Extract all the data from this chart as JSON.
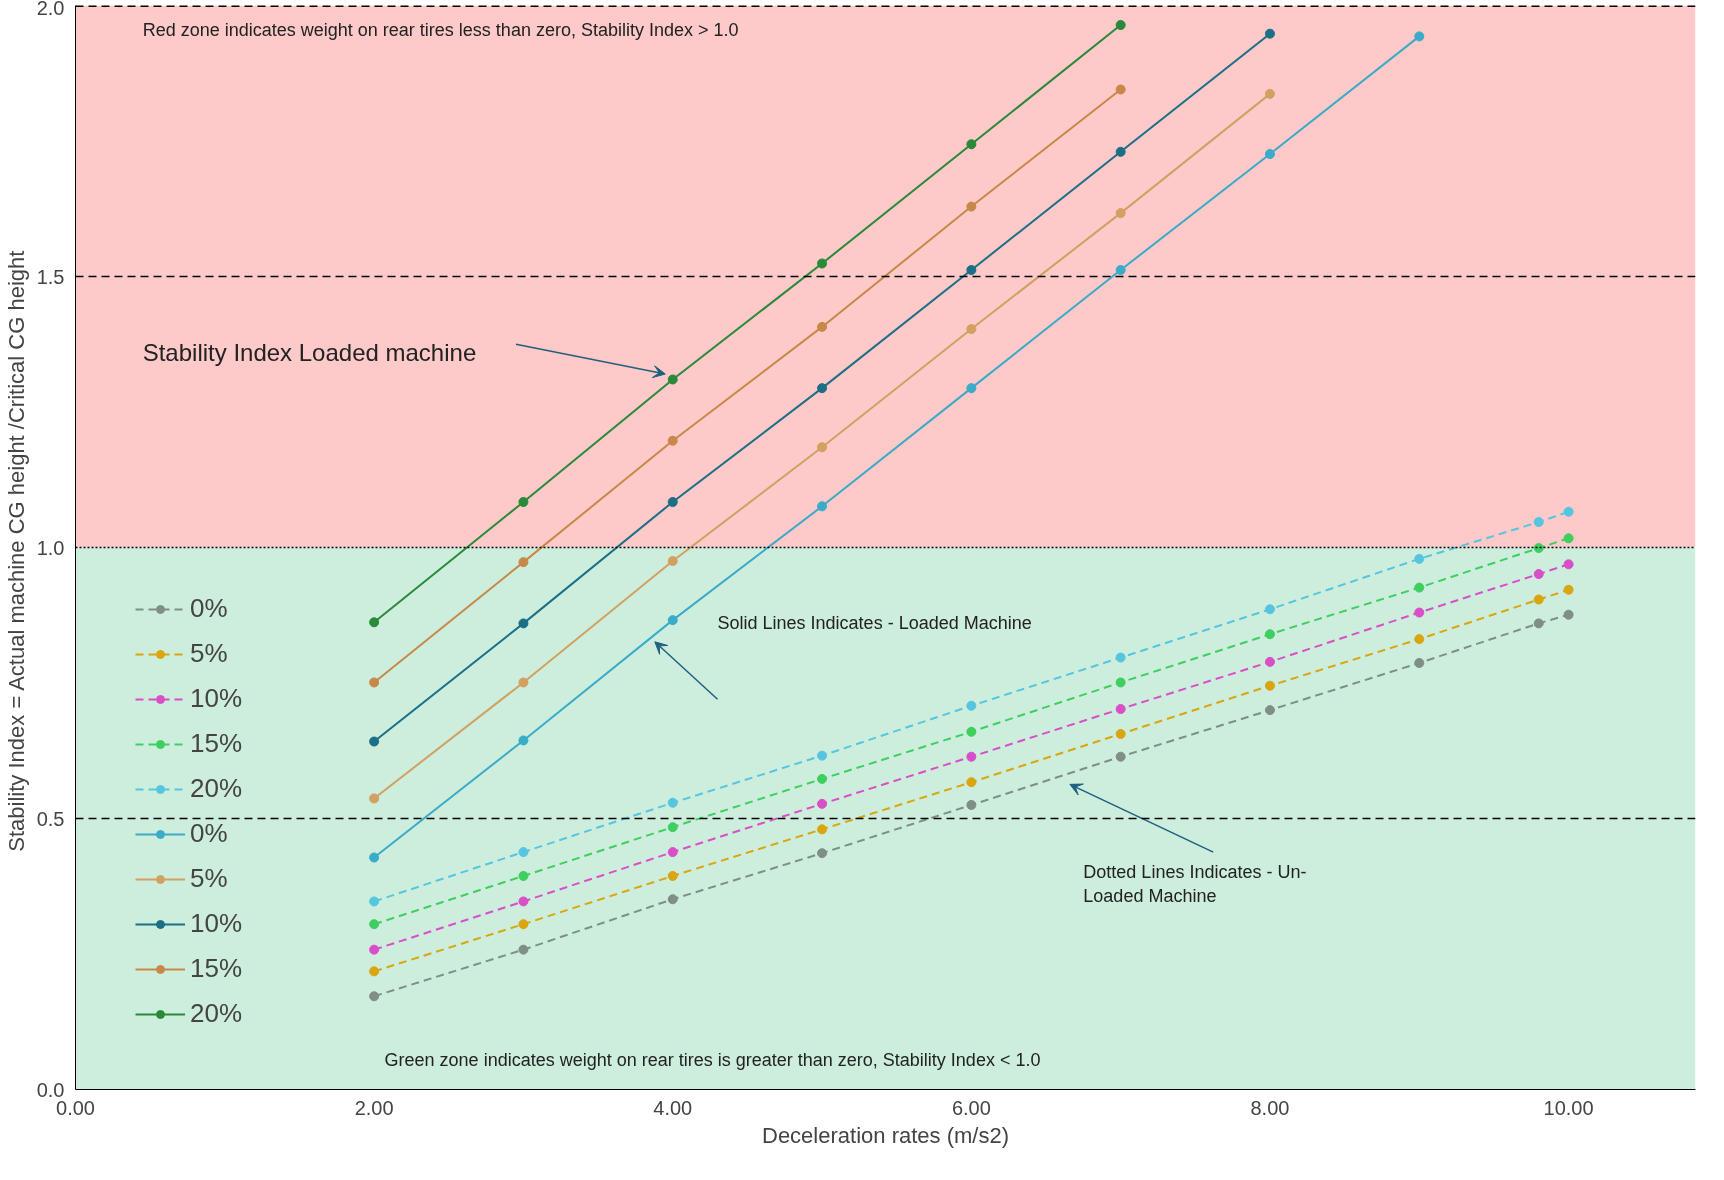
{
  "chart_data": {
    "type": "line",
    "xlabel": "Deceleration rates (m/s2)",
    "ylabel": "Stability Index = Actual machine  CG height /Critical CG height",
    "xlim": [
      0,
      10.85
    ],
    "ylim": [
      0,
      2
    ],
    "xticks": [
      {
        "value": 0,
        "label": "0.00"
      },
      {
        "value": 2,
        "label": "2.00"
      },
      {
        "value": 4,
        "label": "4.00"
      },
      {
        "value": 6,
        "label": "6.00"
      },
      {
        "value": 8,
        "label": "8.00"
      },
      {
        "value": 10,
        "label": "10.00"
      }
    ],
    "yticks": [
      {
        "value": 0,
        "label": "0.0"
      },
      {
        "value": 0.5,
        "label": "0.5"
      },
      {
        "value": 1,
        "label": "1.0"
      },
      {
        "value": 1.5,
        "label": "1.5"
      },
      {
        "value": 2,
        "label": "2.0"
      }
    ],
    "grid": "x",
    "legend": "bottom left",
    "marker": "circle",
    "series": [
      {
        "name": "0%",
        "color": "#7f8f85",
        "line_style": "dashed",
        "x": [
          2,
          3,
          4,
          5,
          6,
          7,
          8,
          9,
          9.8,
          10
        ],
        "values": [
          0.172,
          0.258,
          0.351,
          0.436,
          0.525,
          0.614,
          0.7,
          0.787,
          0.86,
          0.876
        ]
      },
      {
        "name": "5%",
        "color": "#d9a60f",
        "line_style": "dashed",
        "x": [
          2,
          3,
          4,
          5,
          6,
          7,
          8,
          9,
          9.8,
          10
        ],
        "values": [
          0.218,
          0.305,
          0.394,
          0.48,
          0.567,
          0.656,
          0.745,
          0.831,
          0.904,
          0.922
        ]
      },
      {
        "name": "10%",
        "color": "#d94fc8",
        "line_style": "dashed",
        "x": [
          2,
          3,
          4,
          5,
          6,
          7,
          8,
          9,
          9.8,
          10
        ],
        "values": [
          0.258,
          0.347,
          0.438,
          0.527,
          0.614,
          0.702,
          0.789,
          0.88,
          0.951,
          0.969
        ]
      },
      {
        "name": "15%",
        "color": "#3fcf5f",
        "line_style": "dashed",
        "x": [
          2,
          3,
          4,
          5,
          6,
          7,
          8,
          9,
          9.8,
          10
        ],
        "values": [
          0.305,
          0.394,
          0.484,
          0.573,
          0.66,
          0.751,
          0.84,
          0.926,
          0.999,
          1.017
        ]
      },
      {
        "name": "20%",
        "color": "#56c6e0",
        "line_style": "dashed",
        "x": [
          2,
          3,
          4,
          5,
          6,
          7,
          8,
          9,
          9.8,
          10
        ],
        "values": [
          0.347,
          0.438,
          0.529,
          0.616,
          0.708,
          0.797,
          0.886,
          0.979,
          1.047,
          1.066
        ]
      },
      {
        "name": "0%",
        "color": "#3aabc8",
        "line_style": "solid",
        "x": [
          2,
          3,
          4,
          5,
          6,
          7,
          8,
          9
        ],
        "values": [
          0.428,
          0.644,
          0.866,
          1.076,
          1.294,
          1.512,
          1.726,
          1.943
        ]
      },
      {
        "name": "5%",
        "color": "#d2a060",
        "line_style": "solid",
        "x": [
          2,
          3,
          4,
          5,
          6,
          7,
          8
        ],
        "values": [
          0.537,
          0.751,
          0.975,
          1.185,
          1.403,
          1.617,
          1.837
        ]
      },
      {
        "name": "10%",
        "color": "#1b6f86",
        "line_style": "solid",
        "x": [
          2,
          3,
          4,
          5,
          6,
          7,
          8
        ],
        "values": [
          0.642,
          0.86,
          1.084,
          1.294,
          1.512,
          1.73,
          1.948
        ]
      },
      {
        "name": "15%",
        "color": "#c88848",
        "line_style": "solid",
        "x": [
          2,
          3,
          4,
          5,
          6,
          7
        ],
        "values": [
          0.751,
          0.973,
          1.197,
          1.407,
          1.629,
          1.845
        ]
      },
      {
        "name": "20%",
        "color": "#2a8a3a",
        "line_style": "solid",
        "x": [
          2,
          3,
          4,
          5,
          6,
          7
        ],
        "values": [
          0.862,
          1.084,
          1.31,
          1.524,
          1.744,
          1.964
        ]
      }
    ],
    "ref_lines": [
      {
        "axis": "y",
        "value": 2,
        "line_style": "dashed",
        "color": "#000000"
      },
      {
        "axis": "y",
        "value": 1.5,
        "line_style": "dashed",
        "color": "#000000"
      },
      {
        "axis": "y",
        "value": 1,
        "line_style": "dotted",
        "color": "#000000"
      },
      {
        "axis": "y",
        "value": 0.5,
        "line_style": "dashed",
        "color": "#000000"
      }
    ],
    "bands": [
      {
        "axis": "y",
        "from": 1,
        "to": 2,
        "color": "#fdc9c9"
      },
      {
        "axis": "y",
        "from": 0,
        "to": 1,
        "color": "#cdeedd"
      }
    ],
    "annotations": [
      "Red zone indicates weight on rear tires less than zero, Stability Index > 1.0",
      "Stability Index Loaded machine",
      "Solid Lines Indicates - Loaded Machine",
      "Dotted  Lines Indicates - Un-Loaded Machine",
      "Green zone indicates weight on rear tires is greater than zero, Stability Index < 1.0"
    ]
  }
}
